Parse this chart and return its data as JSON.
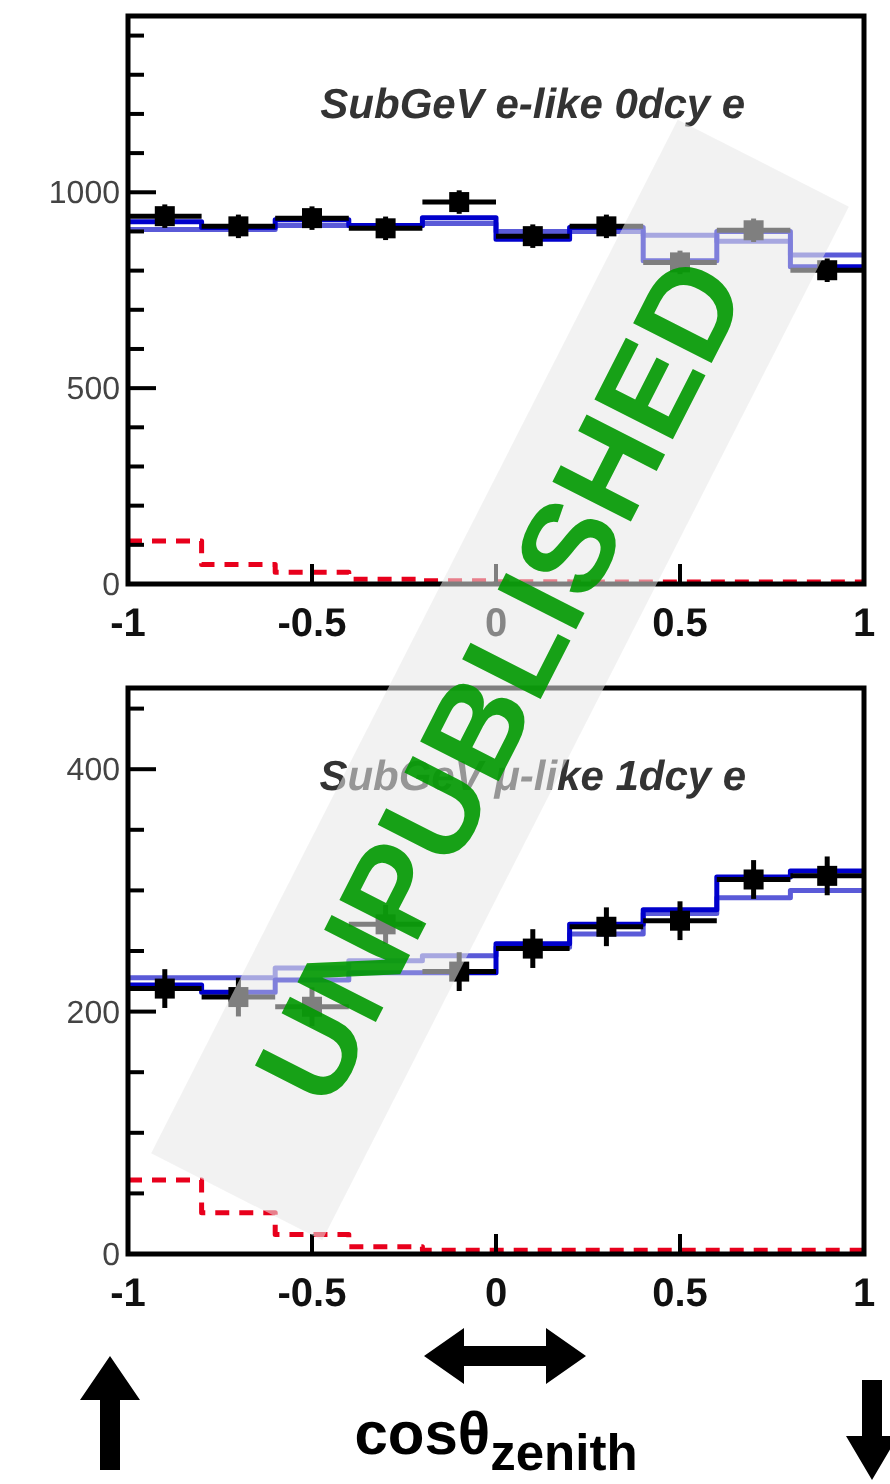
{
  "chart_data": [
    {
      "type": "histogram",
      "title": "SubGeV e-like 0dcy e",
      "xlim": [
        -1,
        1
      ],
      "xticks": [
        -1,
        -0.5,
        0,
        0.5,
        1
      ],
      "ylim": [
        0,
        1450
      ],
      "yticks": [
        0,
        {
          "value": 100,
          "label": null
        },
        {
          "value": 200,
          "label": null
        },
        {
          "value": 300,
          "label": null
        },
        {
          "value": 400,
          "label": null
        },
        500,
        {
          "value": 600,
          "label": null
        },
        {
          "value": 700,
          "label": null
        },
        {
          "value": 800,
          "label": null
        },
        {
          "value": 900,
          "label": null
        },
        1000,
        {
          "value": 1100,
          "label": null
        },
        {
          "value": 1200,
          "label": null
        },
        {
          "value": 1300,
          "label": null
        },
        {
          "value": 1400,
          "label": null
        }
      ],
      "annotations": [
        "UNPUBLISHED"
      ],
      "series": [
        {
          "color": "#5a5ad8",
          "bins": [
            -1,
            -0.8,
            -0.6,
            -0.4,
            -0.2,
            0,
            0.2,
            0.4,
            0.6,
            0.8,
            1
          ],
          "values": [
            905,
            905,
            915,
            915,
            920,
            900,
            900,
            890,
            875,
            840
          ]
        },
        {
          "color": "#0000cc",
          "bins": [
            -1,
            -0.8,
            -0.6,
            -0.4,
            -0.2,
            0,
            0.2,
            0.4,
            0.6,
            0.8,
            1
          ],
          "values": [
            925,
            910,
            930,
            915,
            935,
            880,
            910,
            825,
            900,
            810
          ]
        },
        {
          "color": "#e8001c",
          "line_style": "dashed",
          "bins": [
            -1,
            -0.8,
            -0.6,
            -0.4,
            -0.2,
            0,
            0.2,
            0.4,
            0.6,
            0.8,
            1
          ],
          "values": [
            110,
            50,
            30,
            12,
            8,
            6,
            5,
            5,
            5,
            5
          ]
        },
        {
          "type": "scatter",
          "color": "#000000",
          "marker": "square",
          "x": [
            -0.9,
            -0.7,
            -0.5,
            -0.3,
            -0.1,
            0.1,
            0.3,
            0.5,
            0.7,
            0.9
          ],
          "values": [
            939,
            913,
            934,
            908,
            975,
            888,
            913,
            821,
            903,
            801
          ],
          "errors": [
            30,
            30,
            30,
            30,
            30,
            30,
            30,
            30,
            30,
            30
          ],
          "xerrors": [
            0.1,
            0.1,
            0.1,
            0.1,
            0.1,
            0.1,
            0.1,
            0.1,
            0.1,
            0.1
          ]
        }
      ]
    },
    {
      "type": "histogram",
      "title": "SubGeV μ-like 1dcy e",
      "xlabel": "cosθ$_{zenith}$",
      "xlim": [
        -1,
        1
      ],
      "xticks": [
        -1,
        -0.5,
        0,
        0.5,
        1
      ],
      "ylim": [
        0,
        467
      ],
      "yticks": [
        0,
        {
          "value": 50,
          "label": null
        },
        {
          "value": 100,
          "label": null
        },
        {
          "value": 150,
          "label": null
        },
        200,
        {
          "value": 250,
          "label": null
        },
        {
          "value": 300,
          "label": null
        },
        {
          "value": 350,
          "label": null
        },
        400,
        {
          "value": 450,
          "label": null
        }
      ],
      "series": [
        {
          "color": "#5a5ad8",
          "bins": [
            -1,
            -0.8,
            -0.6,
            -0.4,
            -0.2,
            0,
            0.2,
            0.4,
            0.6,
            0.8,
            1
          ],
          "values": [
            228,
            228,
            236,
            242,
            246,
            253,
            264,
            281,
            294,
            300
          ]
        },
        {
          "color": "#0000cc",
          "bins": [
            -1,
            -0.8,
            -0.6,
            -0.4,
            -0.2,
            0,
            0.2,
            0.4,
            0.6,
            0.8,
            1
          ],
          "values": [
            222,
            216,
            226,
            232,
            232,
            256,
            272,
            284,
            311,
            316
          ]
        },
        {
          "color": "#e8001c",
          "line_style": "dashed",
          "bins": [
            -1,
            -0.8,
            -0.6,
            -0.4,
            -0.2,
            0,
            0.2,
            0.4,
            0.6,
            0.8,
            1
          ],
          "values": [
            61,
            34,
            16,
            6,
            3,
            3,
            3,
            3,
            3,
            3
          ]
        },
        {
          "type": "scatter",
          "color": "#000000",
          "marker": "square",
          "x": [
            -0.9,
            -0.7,
            -0.5,
            -0.3,
            -0.1,
            0.1,
            0.3,
            0.5,
            0.7,
            0.9
          ],
          "values": [
            219,
            212,
            204,
            272,
            233,
            252,
            270,
            275,
            309,
            312
          ],
          "errors": [
            16,
            16,
            16,
            16,
            16,
            16,
            16,
            16,
            16,
            16
          ],
          "xerrors": [
            0.1,
            0.1,
            0.1,
            0.1,
            0.1,
            0.1,
            0.1,
            0.1,
            0.1,
            0.1
          ]
        }
      ]
    }
  ]
}
